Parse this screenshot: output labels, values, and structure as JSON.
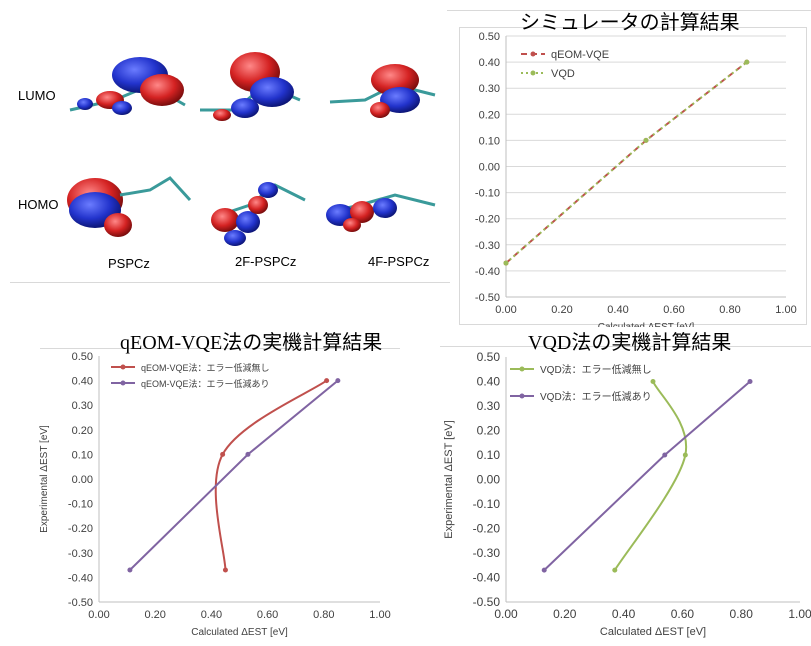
{
  "molecule_figure": {
    "row_labels": [
      "LUMO",
      "HOMO"
    ],
    "molecule_names": [
      "PSPCz",
      "2F-PSPCz",
      "4F-PSPCz"
    ]
  },
  "chart_data": [
    {
      "id": "sim",
      "type": "line",
      "title": "シミュレータの計算結果",
      "xlabel": "Calculated ΔEST  [eV]",
      "ylabel": "",
      "xlim": [
        0.0,
        1.0
      ],
      "ylim": [
        -0.5,
        0.5
      ],
      "xticks": [
        "0.00",
        "0.20",
        "0.40",
        "0.60",
        "0.80",
        "1.00"
      ],
      "yticks": [
        "-0.50",
        "-0.40",
        "-0.30",
        "-0.20",
        "-0.10",
        "0.00",
        "0.10",
        "0.20",
        "0.30",
        "0.40",
        "0.50"
      ],
      "legend_position": "top-left",
      "grid": "horizontal",
      "series": [
        {
          "name": "qEOM-VQE",
          "color": "#c0504d",
          "dash": "dashed",
          "curve": "straight",
          "x": [
            0.0,
            0.5,
            0.86
          ],
          "y": [
            -0.37,
            0.1,
            0.4
          ]
        },
        {
          "name": "VQD",
          "color": "#9bbb59",
          "dash": "dotted",
          "curve": "straight",
          "x": [
            0.0,
            0.5,
            0.86
          ],
          "y": [
            -0.37,
            0.1,
            0.4
          ]
        }
      ]
    },
    {
      "id": "qeom",
      "type": "line",
      "title": "qEOM-VQE法の実機計算結果",
      "xlabel": "Calculated ΔEST [eV]",
      "ylabel": "Experimental ΔEST [eV]",
      "xlim": [
        0.0,
        1.0
      ],
      "ylim": [
        -0.5,
        0.5
      ],
      "xticks": [
        "0.00",
        "0.20",
        "0.40",
        "0.60",
        "0.80",
        "1.00"
      ],
      "yticks": [
        "-0.50",
        "-0.40",
        "-0.30",
        "-0.20",
        "-0.10",
        "0.00",
        "0.10",
        "0.20",
        "0.30",
        "0.40",
        "0.50"
      ],
      "legend_position": "top-left",
      "grid": "none",
      "series": [
        {
          "name": "qEOM-VQE法：エラー低減無し",
          "color": "#c0504d",
          "dash": "solid",
          "curve": "smooth",
          "x": [
            0.45,
            0.44,
            0.81
          ],
          "y": [
            -0.37,
            0.1,
            0.4
          ]
        },
        {
          "name": "qEOM-VQE法：エラー低減あり",
          "color": "#8064a2",
          "dash": "solid",
          "curve": "straight",
          "x": [
            0.11,
            0.53,
            0.85
          ],
          "y": [
            -0.37,
            0.1,
            0.4
          ]
        }
      ]
    },
    {
      "id": "vqd",
      "type": "line",
      "title": "VQD法の実機計算結果",
      "xlabel": "Calculated ΔEST [eV]",
      "ylabel": "Experimental ΔEST [eV]",
      "xlim": [
        0.0,
        1.0
      ],
      "ylim": [
        -0.5,
        0.5
      ],
      "xticks": [
        "0.00",
        "0.20",
        "0.40",
        "0.60",
        "0.80",
        "1.00"
      ],
      "yticks": [
        "-0.50",
        "-0.40",
        "-0.30",
        "-0.20",
        "-0.10",
        "0.00",
        "0.10",
        "0.20",
        "0.30",
        "0.40",
        "0.50"
      ],
      "legend_position": "top-left",
      "grid": "none",
      "series": [
        {
          "name": "VQD法：エラー低減無し",
          "color": "#9bbb59",
          "dash": "solid",
          "curve": "smooth",
          "x": [
            0.37,
            0.61,
            0.5
          ],
          "y": [
            -0.37,
            0.1,
            0.4
          ]
        },
        {
          "name": "VQD法：エラー低減あり",
          "color": "#8064a2",
          "dash": "solid",
          "curve": "straight",
          "x": [
            0.13,
            0.54,
            0.83
          ],
          "y": [
            -0.37,
            0.1,
            0.4
          ]
        }
      ]
    }
  ]
}
